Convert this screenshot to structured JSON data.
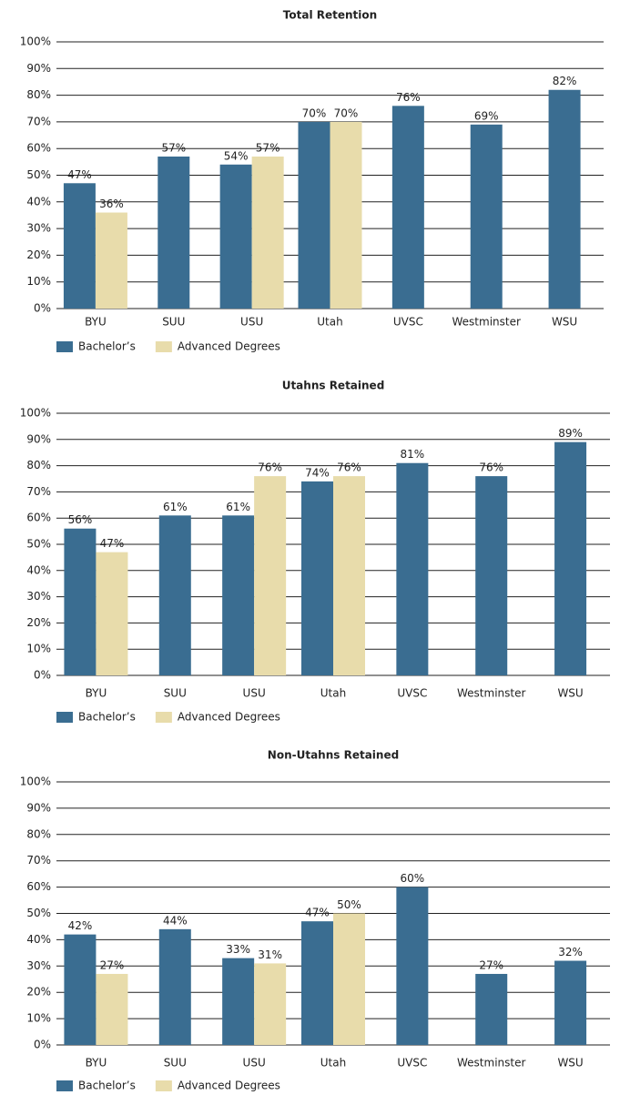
{
  "chart_data": [
    {
      "type": "bar",
      "title": "Total Retention",
      "categories": [
        "BYU",
        "SUU",
        "USU",
        "Utah",
        "UVSC",
        "Westminster",
        "WSU"
      ],
      "series": [
        {
          "name": "Bachelor’s",
          "color": "#3a6d91",
          "values": [
            47,
            57,
            54,
            70,
            76,
            69,
            82
          ],
          "value_labels": [
            "47%",
            "57%",
            "54%",
            "70%",
            "76%",
            "69%",
            "82%"
          ]
        },
        {
          "name": "Advanced Degrees",
          "color": "#e8dcab",
          "values": [
            36,
            null,
            57,
            70,
            null,
            null,
            null
          ],
          "value_labels": [
            "36%",
            null,
            "57%",
            "70%",
            null,
            null,
            null
          ]
        }
      ],
      "ylim": [
        0,
        100
      ],
      "yticks": [
        {
          "value": 0,
          "label": "0%"
        },
        {
          "value": 10,
          "label": "10%"
        },
        {
          "value": 20,
          "label": "20%"
        },
        {
          "value": 30,
          "label": "30%"
        },
        {
          "value": 40,
          "label": "40%"
        },
        {
          "value": 50,
          "label": "50%"
        },
        {
          "value": 60,
          "label": "60%"
        },
        {
          "value": 70,
          "label": "70%"
        },
        {
          "value": 80,
          "label": "80%"
        },
        {
          "value": 90,
          "label": "90%"
        },
        {
          "value": 100,
          "label": "100%"
        }
      ],
      "grid": true,
      "legend": "bottom-left"
    },
    {
      "type": "bar",
      "title": "Utahns Retained",
      "categories": [
        "BYU",
        "SUU",
        "USU",
        "Utah",
        "UVSC",
        "Westminster",
        "WSU"
      ],
      "series": [
        {
          "name": "Bachelor’s",
          "color": "#3a6d91",
          "values": [
            56,
            61,
            61,
            74,
            81,
            76,
            89
          ],
          "value_labels": [
            "56%",
            "61%",
            "61%",
            "74%",
            "81%",
            "76%",
            "89%"
          ]
        },
        {
          "name": "Advanced Degrees",
          "color": "#e8dcab",
          "values": [
            47,
            null,
            76,
            76,
            null,
            null,
            null
          ],
          "value_labels": [
            "47%",
            null,
            "76%",
            "76%",
            null,
            null,
            null
          ]
        }
      ],
      "ylim": [
        0,
        100
      ],
      "yticks": [
        {
          "value": 0,
          "label": "0%"
        },
        {
          "value": 10,
          "label": "10%"
        },
        {
          "value": 20,
          "label": "20%"
        },
        {
          "value": 30,
          "label": "30%"
        },
        {
          "value": 40,
          "label": "40%"
        },
        {
          "value": 50,
          "label": "50%"
        },
        {
          "value": 60,
          "label": "60%"
        },
        {
          "value": 70,
          "label": "70%"
        },
        {
          "value": 80,
          "label": "80%"
        },
        {
          "value": 90,
          "label": "90%"
        },
        {
          "value": 100,
          "label": "100%"
        }
      ],
      "grid": true,
      "legend": "bottom-left"
    },
    {
      "type": "bar",
      "title": "Non-Utahns Retained",
      "categories": [
        "BYU",
        "SUU",
        "USU",
        "Utah",
        "UVSC",
        "Westminster",
        "WSU"
      ],
      "series": [
        {
          "name": "Bachelor’s",
          "color": "#3a6d91",
          "values": [
            42,
            44,
            33,
            47,
            60,
            27,
            32
          ],
          "value_labels": [
            "42%",
            "44%",
            "33%",
            "47%",
            "60%",
            "27%",
            "32%"
          ]
        },
        {
          "name": "Advanced Degrees",
          "color": "#e8dcab",
          "values": [
            27,
            null,
            31,
            50,
            null,
            null,
            null
          ],
          "value_labels": [
            "27%",
            null,
            "31%",
            "50%",
            null,
            null,
            null
          ]
        }
      ],
      "ylim": [
        0,
        100
      ],
      "yticks": [
        {
          "value": 0,
          "label": "0%"
        },
        {
          "value": 10,
          "label": "10%"
        },
        {
          "value": 20,
          "label": "20%"
        },
        {
          "value": 30,
          "label": "30%"
        },
        {
          "value": 40,
          "label": "40%"
        },
        {
          "value": 50,
          "label": "50%"
        },
        {
          "value": 60,
          "label": "60%"
        },
        {
          "value": 70,
          "label": "70%"
        },
        {
          "value": 80,
          "label": "80%"
        },
        {
          "value": 90,
          "label": "90%"
        },
        {
          "value": 100,
          "label": "100%"
        }
      ],
      "grid": true,
      "legend": "bottom-left"
    }
  ]
}
